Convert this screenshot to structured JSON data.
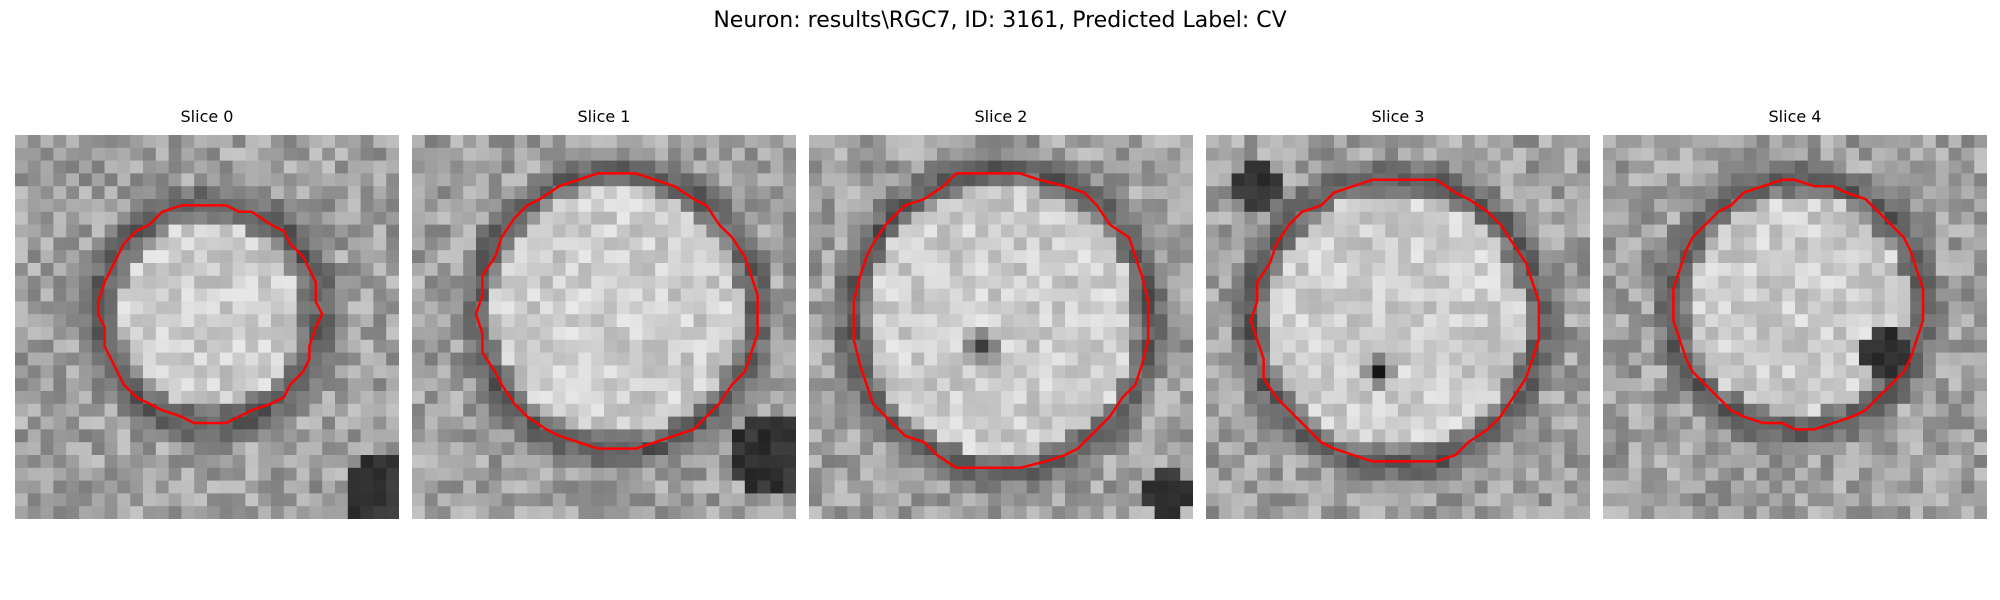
{
  "figure": {
    "title": "Neuron: results\\RGC7, ID: 3161, Predicted Label: CV"
  },
  "colors": {
    "contour": "#ff0000",
    "background": "#ffffff"
  },
  "slices": [
    {
      "title": "Slice 0"
    },
    {
      "title": "Slice 1"
    },
    {
      "title": "Slice 2"
    },
    {
      "title": "Slice 3"
    },
    {
      "title": "Slice 4"
    }
  ]
}
